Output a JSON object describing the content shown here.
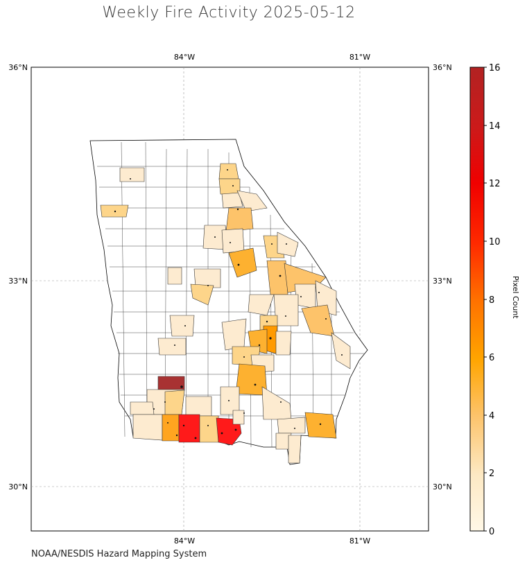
{
  "title": "Weekly Fire Activity 2025-05-12",
  "source": "NOAA/NESDIS Hazard Mapping System",
  "map": {
    "lon_labels_top": [
      "84°W",
      "81°W"
    ],
    "lon_labels_bottom": [
      "84°W",
      "81°W"
    ],
    "lat_labels_left": [
      "36°N",
      "33°N",
      "30°N"
    ],
    "lat_labels_right": [
      "36°N",
      "33°N",
      "30°N"
    ],
    "region": "Georgia counties",
    "grid": true
  },
  "colorbar": {
    "label": "Pixel Count",
    "ticks": [
      "0",
      "2",
      "4",
      "6",
      "8",
      "10",
      "12",
      "14",
      "16"
    ],
    "range": [
      0,
      16
    ],
    "colors": [
      "#fff8e7",
      "#fdd58a",
      "#ffa500",
      "#ff6a00",
      "#ff0000",
      "#b22222"
    ]
  }
}
